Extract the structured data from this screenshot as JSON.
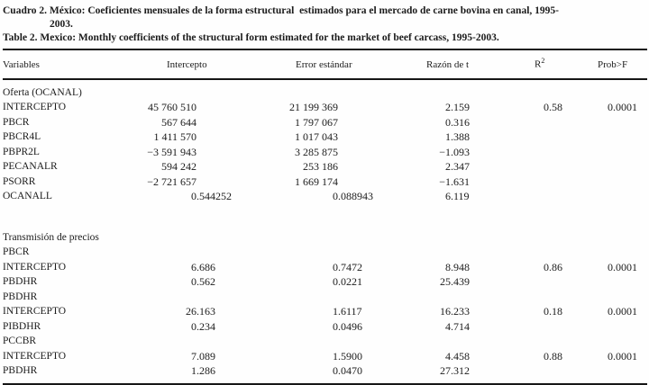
{
  "title": {
    "line1": "Cuadro 2. México: Coeficientes mensuales de la forma estructural  estimados para el mercado de carne bovina en canal, 1995-",
    "line2": "2003.",
    "line3": "Table 2. Mexico: Monthly coefficients of the structural form estimated for the market of beef carcass, 1995-2003."
  },
  "table": {
    "headers": {
      "variables": "Variables",
      "intercepto": "Intercepto",
      "error": "Error estándar",
      "razon": "Razón de t",
      "r2_base": "R",
      "r2_sup": "2",
      "prob": "Prob>F"
    },
    "column_names": [
      "intercepto-cell",
      "error-estandar-cell",
      "razon-de-t-cell",
      "r2-cell",
      "prob-f-cell"
    ],
    "rows": [
      {
        "type": "section",
        "label": "Oferta (OCANAL)"
      },
      {
        "type": "data",
        "label": "INTERCEPTO",
        "cells": [
          "45 760 510",
          "21 199 369",
          "2.159",
          "0.58",
          "0.0001"
        ]
      },
      {
        "type": "data",
        "label": "PBCR",
        "cells": [
          "567 644",
          "1 797 067",
          "0.316",
          "",
          ""
        ]
      },
      {
        "type": "data",
        "label": "PBCR4L",
        "cells": [
          "1 411 570",
          "1 017 043",
          "1.388",
          "",
          ""
        ]
      },
      {
        "type": "data",
        "label": "PBPR2L",
        "cells": [
          "−3 591 943",
          "3 285 875",
          "−1.093",
          "",
          ""
        ]
      },
      {
        "type": "data",
        "label": "PECANALR",
        "cells": [
          "594 242",
          "253 186",
          "2.347",
          "",
          ""
        ]
      },
      {
        "type": "data",
        "label": "PSORR",
        "cells": [
          "−2 721 657",
          "1 669 174",
          "−1.631",
          "",
          ""
        ]
      },
      {
        "type": "data",
        "label": "OCANALL",
        "cells": [
          "0.544252",
          "0.088943",
          "6.119",
          "",
          ""
        ]
      },
      {
        "type": "spacer"
      },
      {
        "type": "section",
        "label": "Transmisión de precios"
      },
      {
        "type": "section",
        "label": "PBCR"
      },
      {
        "type": "data",
        "label": "INTERCEPTO",
        "cells": [
          "6.686",
          "0.7472",
          "8.948",
          "0.86",
          "0.0001"
        ]
      },
      {
        "type": "data",
        "label": "PBDHR",
        "cells": [
          "0.562",
          "0.0221",
          "25.439",
          "",
          ""
        ]
      },
      {
        "type": "section",
        "label": "PBDHR"
      },
      {
        "type": "data",
        "label": "INTERCEPTO",
        "cells": [
          "26.163",
          "1.6117",
          "16.233",
          "0.18",
          "0.0001"
        ]
      },
      {
        "type": "data",
        "label": "PIBDHR",
        "cells": [
          "0.234",
          "0.0496",
          "4.714",
          "",
          ""
        ]
      },
      {
        "type": "section",
        "label": "PCCBR"
      },
      {
        "type": "data",
        "label": "INTERCEPTO",
        "cells": [
          "7.089",
          "1.5900",
          "4.458",
          "0.88",
          "0.0001"
        ]
      },
      {
        "type": "data",
        "label": "PBDHR",
        "cells": [
          "1.286",
          "0.0470",
          "27.312",
          "",
          ""
        ]
      }
    ]
  }
}
